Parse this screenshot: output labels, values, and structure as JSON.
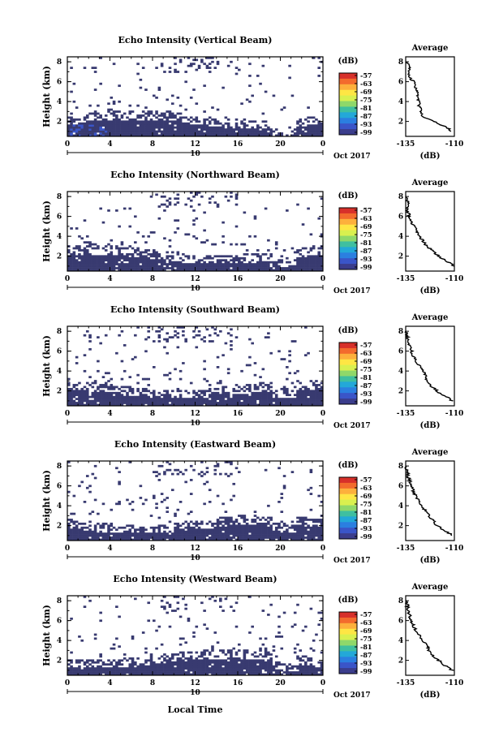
{
  "chart_data": {
    "type": "heatmap",
    "shared": {
      "x_ticks": [
        "0",
        "4",
        "8",
        "12",
        "16",
        "20",
        "0"
      ],
      "date_tick_label": "10",
      "date_suffix": "Oct 2017",
      "y_ticks": [
        "2",
        "4",
        "6",
        "8"
      ],
      "ylabel": "Height (km)",
      "xlabel": "Local Time",
      "colorbar_title": "(dB)",
      "colorbar_ticks": [
        "-57",
        "-63",
        "-69",
        "-75",
        "-81",
        "-87",
        "-93",
        "-99"
      ],
      "colorbar_colors": [
        "#d7302a",
        "#f36b2d",
        "#fdb03c",
        "#fee644",
        "#d9f04f",
        "#8fd86a",
        "#3fbfa0",
        "#23a8d8",
        "#2b7fe0",
        "#3a55c8",
        "#3b3d8c"
      ],
      "avg_title": "Average",
      "avg_xlabel": "(dB)",
      "heatmap_dominant_color": "#383a70",
      "x_range_hours": [
        0,
        24
      ],
      "y_range_km": [
        0.5,
        8.5
      ]
    },
    "panels": [
      {
        "title": "Echo Intensity (Vertical Beam)",
        "avg_xticks": [
          "-135",
          "-110"
        ],
        "avg_xlim": [
          -135,
          -110
        ],
        "avg_profile": [
          [
            1.0,
            -111
          ],
          [
            1.5,
            -115
          ],
          [
            2.0,
            -121
          ],
          [
            2.5,
            -126
          ],
          [
            3.0,
            -127
          ],
          [
            3.5,
            -128
          ],
          [
            4.0,
            -128
          ],
          [
            4.5,
            -129
          ],
          [
            5.0,
            -129
          ],
          [
            5.5,
            -130
          ],
          [
            6.0,
            -131
          ],
          [
            6.5,
            -133
          ],
          [
            7.0,
            -134
          ],
          [
            7.5,
            -133
          ],
          [
            8.0,
            -134
          ]
        ]
      },
      {
        "title": "Echo Intensity (Northward Beam)",
        "avg_xticks": [
          "-135",
          "-110"
        ],
        "avg_xlim": [
          -135,
          -110
        ],
        "avg_profile": [
          [
            1.0,
            -110
          ],
          [
            1.5,
            -114
          ],
          [
            2.0,
            -118
          ],
          [
            2.5,
            -121
          ],
          [
            3.0,
            -124
          ],
          [
            3.5,
            -126
          ],
          [
            4.0,
            -128
          ],
          [
            4.5,
            -129
          ],
          [
            5.0,
            -131
          ],
          [
            5.5,
            -132
          ],
          [
            6.0,
            -133
          ],
          [
            6.5,
            -134
          ],
          [
            7.0,
            -134
          ],
          [
            7.5,
            -134
          ],
          [
            8.0,
            -135
          ]
        ]
      },
      {
        "title": "Echo Intensity (Southward Beam)",
        "avg_xticks": [
          "-135",
          "-110"
        ],
        "avg_xlim": [
          -135,
          -110
        ],
        "avg_profile": [
          [
            1.0,
            -111
          ],
          [
            1.5,
            -115
          ],
          [
            2.0,
            -119
          ],
          [
            2.5,
            -122
          ],
          [
            3.0,
            -124
          ],
          [
            3.5,
            -125
          ],
          [
            4.0,
            -126
          ],
          [
            4.5,
            -128
          ],
          [
            5.0,
            -130
          ],
          [
            5.5,
            -131
          ],
          [
            6.0,
            -132
          ],
          [
            6.5,
            -133
          ],
          [
            7.0,
            -134
          ],
          [
            7.5,
            -134
          ],
          [
            8.0,
            -135
          ]
        ]
      },
      {
        "title": "Echo Intensity (Eastward Beam)",
        "avg_xticks": [
          "-135",
          "-110"
        ],
        "avg_xlim": [
          -135,
          -110
        ],
        "avg_profile": [
          [
            1.0,
            -111
          ],
          [
            1.5,
            -115
          ],
          [
            2.0,
            -119
          ],
          [
            2.5,
            -121
          ],
          [
            3.0,
            -123
          ],
          [
            3.5,
            -125
          ],
          [
            4.0,
            -127
          ],
          [
            4.5,
            -128
          ],
          [
            5.0,
            -130
          ],
          [
            5.5,
            -131
          ],
          [
            6.0,
            -132
          ],
          [
            6.5,
            -133
          ],
          [
            7.0,
            -134
          ],
          [
            7.5,
            -134
          ],
          [
            8.0,
            -135
          ]
        ]
      },
      {
        "title": "Echo Intensity (Westward Beam)",
        "avg_xticks": [
          "-135",
          "-110"
        ],
        "avg_xlim": [
          -135,
          -110
        ],
        "avg_profile": [
          [
            1.0,
            -111
          ],
          [
            1.5,
            -115
          ],
          [
            2.0,
            -118
          ],
          [
            2.5,
            -121
          ],
          [
            3.0,
            -123
          ],
          [
            3.5,
            -124
          ],
          [
            4.0,
            -126
          ],
          [
            4.5,
            -128
          ],
          [
            5.0,
            -130
          ],
          [
            5.5,
            -131
          ],
          [
            6.0,
            -132
          ],
          [
            6.5,
            -133
          ],
          [
            7.0,
            -134
          ],
          [
            7.5,
            -134
          ],
          [
            8.0,
            -135
          ]
        ]
      }
    ]
  }
}
